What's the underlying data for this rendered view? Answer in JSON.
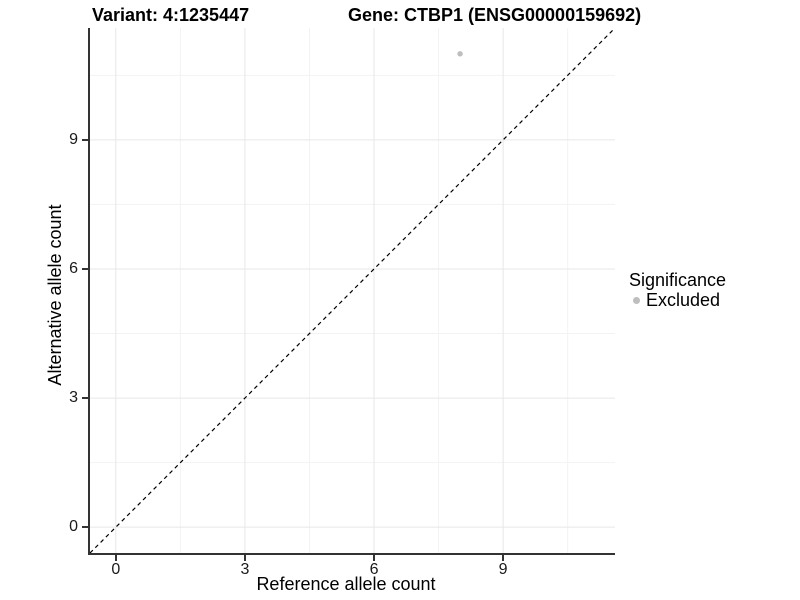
{
  "chart_data": {
    "type": "scatter",
    "titles": {
      "left": "Variant: 4:1235447",
      "right": "Gene: CTBP1 (ENSG00000159692)"
    },
    "xlabel": "Reference allele count",
    "ylabel": "Alternative allele count",
    "xlim": [
      -0.6,
      11.6
    ],
    "ylim": [
      -0.6,
      11.6
    ],
    "x_ticks": [
      0,
      3,
      6,
      9
    ],
    "y_ticks": [
      0,
      3,
      6,
      9
    ],
    "x_minor_ticks": [
      1.5,
      4.5,
      7.5,
      10.5
    ],
    "y_minor_ticks": [
      1.5,
      4.5,
      7.5,
      10.5
    ],
    "grid": "major+minor",
    "legend_position": "right",
    "reference_line": {
      "type": "identity",
      "linestyle": "dashed",
      "color": "#000000",
      "from": [
        -0.6,
        -0.6
      ],
      "to": [
        11.6,
        11.6
      ]
    },
    "series": [
      {
        "name": "Excluded",
        "color": "#bebebe",
        "points": [
          {
            "x": 8,
            "y": 11
          }
        ]
      }
    ],
    "legend": {
      "title": "Significance",
      "entries": [
        {
          "label": "Excluded",
          "color": "#bebebe"
        }
      ]
    }
  },
  "style": {
    "background": "#ffffff",
    "axis_line_color": "#333333",
    "tick_color": "#333333",
    "tick_label_color": "#1a1a1a",
    "grid_major_color": "#e7e7e7",
    "grid_minor_color": "#f3f3f3",
    "reference_line_color": "#000000",
    "point_color": "#bebebe",
    "text_color": "#000000"
  }
}
